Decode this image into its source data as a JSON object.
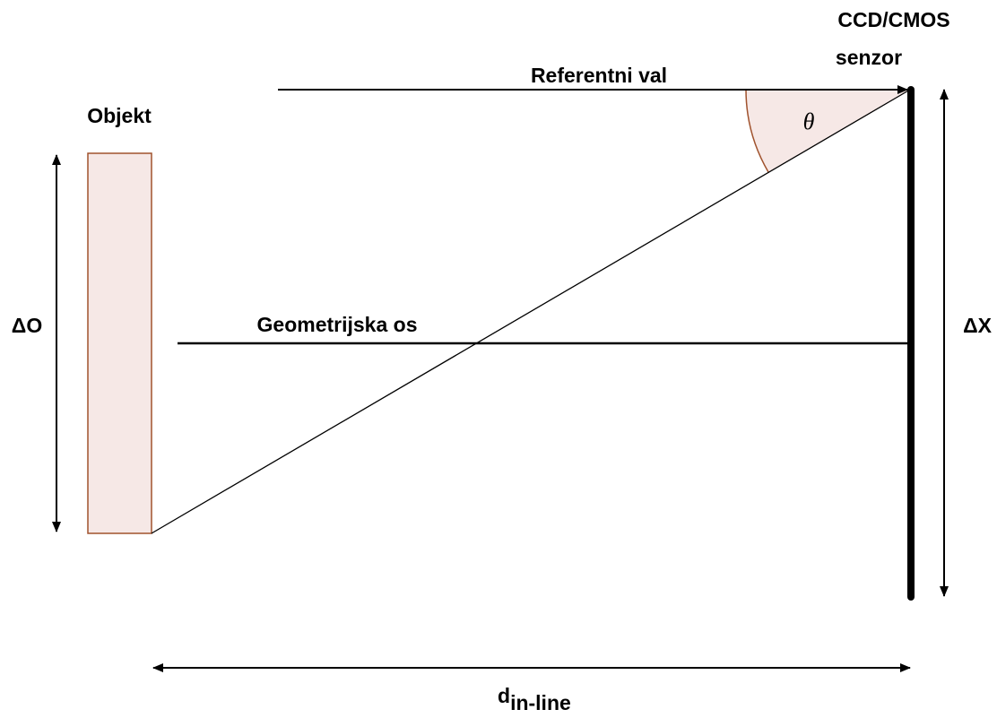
{
  "labels": {
    "sensor_line1": "CCD/CMOS",
    "sensor_line2": "senzor",
    "reference": "Referentni val",
    "object": "Objekt",
    "axis": "Geometrijska os",
    "delta_o": "ΔO",
    "delta_x": "ΔX",
    "theta": "θ",
    "distance": "d",
    "distance_sub": "in-line"
  }
}
